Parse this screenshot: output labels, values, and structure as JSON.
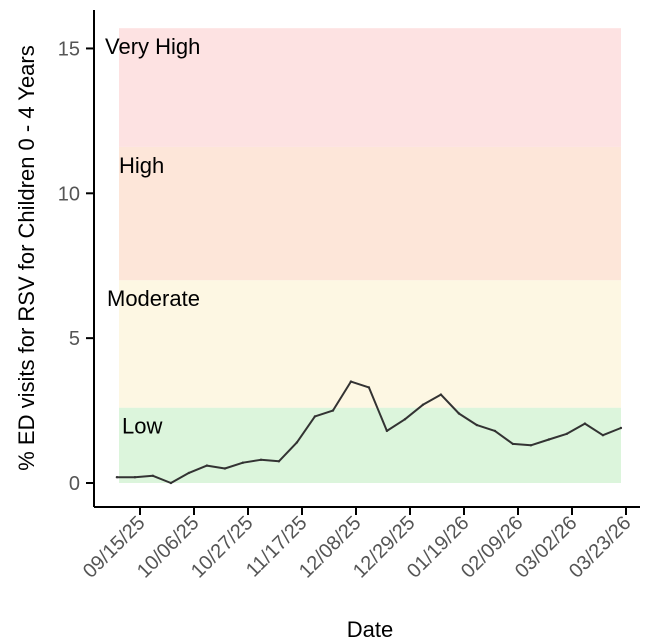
{
  "chart_data": {
    "type": "line",
    "xlabel": "Date",
    "ylabel": "% ED visits for RSV for Children 0 - 4 Years",
    "ylim": [
      0,
      16
    ],
    "y_ticks": [
      0,
      5,
      10,
      15
    ],
    "x_tick_labels": [
      "09/15/25",
      "10/06/25",
      "10/27/25",
      "11/17/25",
      "12/08/25",
      "12/29/25",
      "01/19/26",
      "02/09/26",
      "03/02/26",
      "03/23/26"
    ],
    "grid": false,
    "bands": [
      {
        "label": "Low",
        "from": 0,
        "to": 2.6,
        "color": "#dcf5dc"
      },
      {
        "label": "Moderate",
        "from": 2.6,
        "to": 7.0,
        "color": "#fdf7e3"
      },
      {
        "label": "High",
        "from": 7.0,
        "to": 11.6,
        "color": "#fde6d9"
      },
      {
        "label": "Very High",
        "from": 11.6,
        "to": 15.7,
        "color": "#fde2e2"
      }
    ],
    "series": [
      {
        "color": "#333333",
        "x": [
          "2025-09-06",
          "2025-09-13",
          "2025-09-20",
          "2025-09-27",
          "2025-10-04",
          "2025-10-11",
          "2025-10-18",
          "2025-10-25",
          "2025-11-01",
          "2025-11-08",
          "2025-11-15",
          "2025-11-22",
          "2025-11-29",
          "2025-12-06",
          "2025-12-13",
          "2025-12-20",
          "2025-12-27",
          "2026-01-03",
          "2026-01-10",
          "2026-01-17",
          "2026-01-24",
          "2026-01-31",
          "2026-02-07",
          "2026-02-14",
          "2026-02-21",
          "2026-02-28",
          "2026-03-07",
          "2026-03-14",
          "2026-03-21"
        ],
        "values": [
          0.2,
          0.2,
          0.25,
          0.0,
          0.35,
          0.6,
          0.5,
          0.7,
          0.8,
          0.75,
          1.4,
          2.3,
          2.5,
          3.5,
          3.3,
          1.8,
          2.2,
          2.7,
          3.05,
          2.4,
          2.0,
          1.8,
          1.35,
          1.3,
          1.5,
          1.7,
          2.05,
          1.65,
          1.9
        ]
      }
    ]
  }
}
